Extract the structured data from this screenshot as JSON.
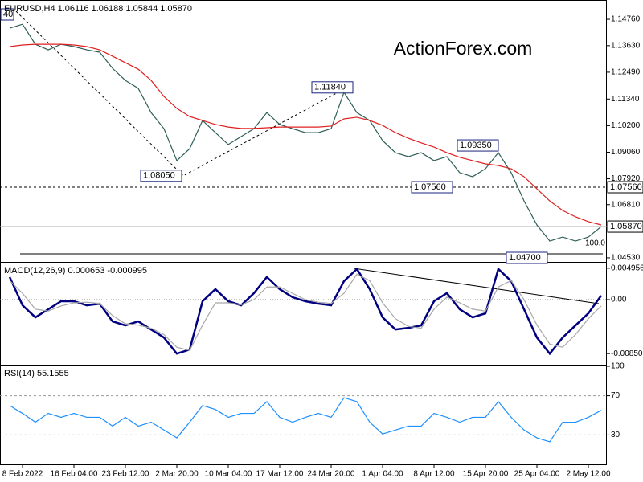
{
  "watermark": "ActionForex.com",
  "chart_data": [
    {
      "type": "line",
      "title": "EURUSD,H4 1.06116 1.06188 1.05844 1.05870",
      "corner_label": "40",
      "series": [
        {
          "color": "#2f5f58",
          "values": [
            1.1438,
            1.1455,
            1.1369,
            1.1345,
            1.1369,
            1.1359,
            1.1345,
            1.1335,
            1.1266,
            1.1214,
            1.118,
            1.1076,
            1.1007,
            1.087,
            1.0921,
            1.1042,
            1.099,
            1.0939,
            1.0973,
            1.1007,
            1.1076,
            1.1025,
            1.1007,
            1.099,
            1.099,
            1.1007,
            1.1163,
            1.1076,
            1.1042,
            1.0956,
            1.0904,
            1.0887,
            1.0904,
            1.087,
            1.0887,
            1.0818,
            1.0801,
            1.0835,
            1.0904,
            1.0818,
            1.0697,
            1.0594,
            1.0525,
            1.0542,
            1.0525,
            1.0542,
            1.0587
          ]
        },
        {
          "color": "#e02020",
          "values": [
            1.1359,
            1.1366,
            1.1369,
            1.1369,
            1.1369,
            1.1366,
            1.1359,
            1.1345,
            1.1318,
            1.129,
            1.1262,
            1.1214,
            1.1145,
            1.1094,
            1.1059,
            1.1042,
            1.1025,
            1.1014,
            1.1008,
            1.1008,
            1.1011,
            1.1014,
            1.1014,
            1.1014,
            1.1014,
            1.1018,
            1.1049,
            1.1056,
            1.1042,
            1.1021,
            1.099,
            1.0966,
            1.0946,
            1.0928,
            1.0904,
            1.0884,
            1.087,
            1.0856,
            1.0849,
            1.0835,
            1.0801,
            1.0749,
            1.0697,
            1.0656,
            1.0629,
            1.0608,
            1.0594
          ]
        }
      ],
      "ylim": [
        1.0439,
        1.1552
      ],
      "yticks": [
        {
          "value": 1.1476,
          "label": "1.14760"
        },
        {
          "value": 1.1363,
          "label": "1.13630"
        },
        {
          "value": 1.1249,
          "label": "1.12490"
        },
        {
          "value": 1.1134,
          "label": "1.11340"
        },
        {
          "value": 1.102,
          "label": "1.10200"
        },
        {
          "value": 1.0906,
          "label": "1.09060"
        },
        {
          "value": 1.0792,
          "label": "1.07920"
        },
        {
          "value": 1.0681,
          "label": "1.06810"
        },
        {
          "value": 1.0453,
          "label": "1.04530"
        }
      ],
      "last_price": {
        "value": 1.0587,
        "label": "1.05870"
      },
      "levels": [
        {
          "value": 1.0756,
          "label": "1.07560",
          "style": "dashed"
        },
        {
          "value": 1.047,
          "label": "1.04700",
          "style": "solid"
        }
      ],
      "annotations": [
        {
          "value": 1.0805,
          "label": "1.08050"
        },
        {
          "value": 1.1184,
          "label": "1.11840"
        },
        {
          "value": 1.0935,
          "label": "1.09350"
        }
      ],
      "fib_label": "100.0"
    },
    {
      "type": "line",
      "title": "MACD(12,26,9) 0.000653 -0.000995",
      "series": [
        {
          "color": "#000080",
          "values": [
            0.00356,
            -0.00089,
            -0.00279,
            -0.00152,
            -0.00025,
            -0.00025,
            -0.00089,
            -0.00064,
            -0.00343,
            -0.00406,
            -0.00343,
            -0.0047,
            -0.00597,
            -0.00851,
            -0.00787,
            -0.00025,
            0.00165,
            -0.00025,
            -0.00089,
            0.00102,
            0.00356,
            0.00165,
            0.00038,
            -0.00025,
            -0.00064,
            -0.00089,
            0.00292,
            0.00483,
            0.00165,
            -0.00279,
            -0.0047,
            -0.00445,
            -0.00406,
            -0.00025,
            0.00102,
            -0.00152,
            -0.00279,
            -0.00216,
            0.00483,
            0.00292,
            -0.00152,
            -0.00597,
            -0.00851,
            -0.00597,
            -0.00406,
            -0.00216,
            0.000653
          ]
        },
        {
          "color": "#a8a8a8",
          "values": [
            0.003,
            0.001,
            -0.0015,
            -0.0018,
            -0.001,
            -0.0005,
            -0.0004,
            -0.0006,
            -0.0025,
            -0.0038,
            -0.004,
            -0.0045,
            -0.0055,
            -0.0075,
            -0.008,
            -0.004,
            -0.0005,
            -0.0005,
            -0.0008,
            0,
            0.002,
            0.002,
            0.001,
            0,
            -0.0004,
            -0.0006,
            0.001,
            0.004,
            0.003,
            -0.0005,
            -0.003,
            -0.0042,
            -0.0045,
            -0.0015,
            0.0004,
            -0.0005,
            -0.0015,
            -0.0018,
            0.002,
            0.003,
            0,
            -0.004,
            -0.007,
            -0.0075,
            -0.0055,
            -0.003,
            -0.000995
          ]
        }
      ],
      "ylim": [
        -0.01,
        0.0057
      ],
      "yticks": [
        0.004956,
        {
          "value": 0,
          "label": "0.00"
        },
        -0.008501
      ],
      "zero_line": true
    },
    {
      "type": "line",
      "title": "RSI(14) 55.1555",
      "categories": [
        null,
        "8 Feb 2022",
        null,
        null,
        null,
        "16 Feb 04:00",
        null,
        null,
        null,
        "23 Feb 12:00",
        null,
        null,
        null,
        "2 Mar 20:00",
        null,
        null,
        null,
        "10 Mar 04:00",
        null,
        null,
        null,
        "17 Mar 12:00",
        null,
        null,
        null,
        "24 Mar 20:00",
        null,
        null,
        null,
        "1 Apr 04:00",
        null,
        null,
        null,
        "8 Apr 12:00",
        null,
        null,
        null,
        "15 Apr 20:00",
        null,
        null,
        null,
        "25 Apr 04:00",
        null,
        null,
        null,
        "2 May 12:00",
        null
      ],
      "series": [
        {
          "color": "#1e90ff",
          "values": [
            60,
            52,
            43,
            52,
            48,
            52,
            48,
            48,
            39,
            48,
            39,
            43,
            35,
            27,
            43,
            60,
            56,
            48,
            52,
            52,
            64,
            48,
            43,
            48,
            52,
            48,
            68,
            64,
            43,
            31,
            35,
            39,
            39,
            52,
            48,
            43,
            48,
            48,
            64,
            48,
            35,
            27,
            23,
            43,
            43,
            48,
            55.1555
          ]
        }
      ],
      "ylim": [
        0,
        100
      ],
      "yticks": [
        100,
        70,
        30
      ],
      "grid": true
    }
  ]
}
